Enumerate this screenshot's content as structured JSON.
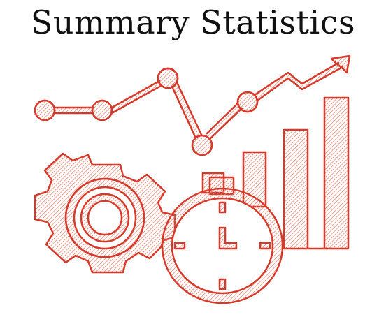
{
  "title": "Summary Statistics",
  "icon": {
    "name": "summary-statistics-icon",
    "parts": [
      "trend-line-icon",
      "arrow-up-right-icon",
      "bar-chart-icon",
      "gear-icon",
      "stopwatch-icon"
    ]
  },
  "colors": {
    "background": "#ffffff",
    "title_text": "#111111",
    "icon_stroke": "#d63a2a",
    "icon_hatch": "#e8806f"
  }
}
